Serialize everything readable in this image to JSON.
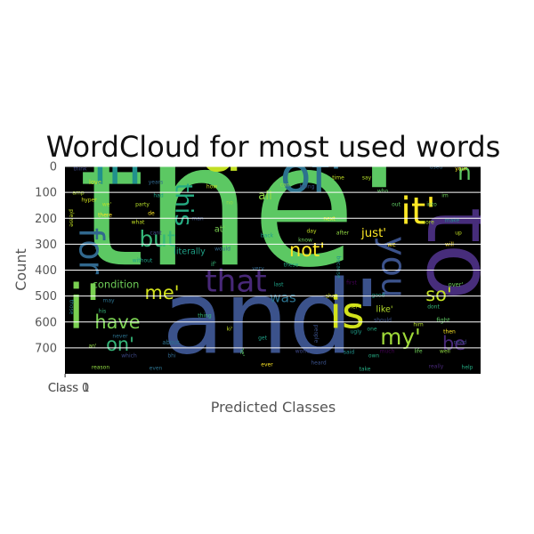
{
  "chart_data": {
    "type": "wordcloud",
    "title": "WordCloud for most used words",
    "xlabel": "Predicted Classes",
    "ylabel": "Count",
    "y_ticks": [
      0,
      100,
      200,
      300,
      400,
      500,
      600,
      700
    ],
    "ylim": [
      800,
      0
    ],
    "x_ticks": [
      {
        "label": "Class 0",
        "x": 0
      },
      {
        "label": "Class 1",
        "x": 1
      }
    ],
    "xlim": [
      0,
      1600
    ],
    "grid": true,
    "background": "#000000",
    "words": [
      {
        "text": "the'",
        "w": 1.0,
        "c": "#5cc863",
        "x": 270,
        "y": 245,
        "rot": 0
      },
      {
        "text": "and'",
        "w": 0.6,
        "c": "#3b528b",
        "x": 305,
        "y": 365,
        "rot": 0
      },
      {
        "text": "a'",
        "w": 0.42,
        "c": "#c2df23",
        "x": 260,
        "y": 170,
        "rot": 0
      },
      {
        "text": "to",
        "w": 0.55,
        "c": "#472d7b",
        "x": 510,
        "y": 285,
        "rot": 90
      },
      {
        "text": "i'",
        "w": 0.36,
        "c": "#7ad151",
        "x": 95,
        "y": 350,
        "rot": 0
      },
      {
        "text": "in'",
        "w": 0.32,
        "c": "#21918c",
        "x": 140,
        "y": 190,
        "rot": 0
      },
      {
        "text": "of'",
        "w": 0.3,
        "c": "#2c728e",
        "x": 350,
        "y": 200,
        "rot": 0
      },
      {
        "text": "is",
        "w": 0.26,
        "c": "#d2e21b",
        "x": 390,
        "y": 355,
        "rot": 0
      },
      {
        "text": "it'",
        "w": 0.22,
        "c": "#fde725",
        "x": 470,
        "y": 240,
        "rot": 0
      },
      {
        "text": "you",
        "w": 0.2,
        "c": "#3b528b",
        "x": 440,
        "y": 300,
        "rot": 90
      },
      {
        "text": "for",
        "w": 0.2,
        "c": "#31688e",
        "x": 100,
        "y": 282,
        "rot": 90
      },
      {
        "text": "that",
        "w": 0.18,
        "c": "#482878",
        "x": 265,
        "y": 318,
        "rot": 0
      },
      {
        "text": "this",
        "w": 0.14,
        "c": "#25ab82",
        "x": 205,
        "y": 230,
        "rot": 90
      },
      {
        "text": "with'",
        "w": 0.13,
        "c": "#b5de2b",
        "x": 460,
        "y": 177,
        "rot": 0
      },
      {
        "text": "but",
        "w": 0.13,
        "c": "#35b779",
        "x": 177,
        "y": 270,
        "rot": 0
      },
      {
        "text": "my'",
        "w": 0.13,
        "c": "#a0da39",
        "x": 450,
        "y": 380,
        "rot": 0
      },
      {
        "text": "have",
        "w": 0.11,
        "c": "#7ad151",
        "x": 132,
        "y": 363,
        "rot": 0
      },
      {
        "text": "not'",
        "w": 0.11,
        "c": "#fde725",
        "x": 345,
        "y": 282,
        "rot": 0
      },
      {
        "text": "so'",
        "w": 0.11,
        "c": "#c2df23",
        "x": 493,
        "y": 332,
        "rot": 0
      },
      {
        "text": "on'",
        "w": 0.11,
        "c": "#35b779",
        "x": 135,
        "y": 388,
        "rot": 0
      },
      {
        "text": "me'",
        "w": 0.11,
        "c": "#d2e21b",
        "x": 182,
        "y": 330,
        "rot": 0
      },
      {
        "text": "be",
        "w": 0.11,
        "c": "#482878",
        "x": 510,
        "y": 387,
        "rot": 0
      },
      {
        "text": "was",
        "w": 0.08,
        "c": "#2c728e",
        "x": 318,
        "y": 335,
        "rot": 0
      },
      {
        "text": "ñ",
        "w": 0.13,
        "c": "#5ec962",
        "x": 522,
        "y": 195,
        "rot": 0
      },
      {
        "text": "all",
        "w": 0.07,
        "c": "#90d743",
        "x": 298,
        "y": 220,
        "rot": 0
      },
      {
        "text": "just'",
        "w": 0.07,
        "c": "#fde725",
        "x": 420,
        "y": 262,
        "rot": 0
      },
      {
        "text": "condition",
        "w": 0.06,
        "c": "#6ece58",
        "x": 130,
        "y": 320,
        "rot": 0
      },
      {
        "text": "disappointment",
        "w": 0.05,
        "c": "#21918c",
        "x": 240,
        "y": 177,
        "rot": 0
      },
      {
        "text": "political",
        "w": 0.05,
        "c": "#26828e",
        "x": 372,
        "y": 177,
        "rot": 0
      },
      {
        "text": "literally",
        "w": 0.05,
        "c": "#1fa187",
        "x": 213,
        "y": 283,
        "rot": 0
      },
      {
        "text": "like'",
        "w": 0.05,
        "c": "#b5de2b",
        "x": 432,
        "y": 348,
        "rot": 0
      },
      {
        "text": "at'",
        "w": 0.05,
        "c": "#7ad151",
        "x": 247,
        "y": 258,
        "rot": 0
      },
      {
        "text": "incident",
        "w": 0.04,
        "c": "#3e4989",
        "x": 140,
        "y": 173,
        "rot": 0
      },
      {
        "text": "laugh",
        "w": 0.035,
        "c": "#21918c",
        "x": 436,
        "y": 170,
        "rot": 0
      },
      {
        "text": "love",
        "w": 0.035,
        "c": "#c2df23",
        "x": 107,
        "y": 205,
        "rot": 0
      },
      {
        "text": "about",
        "w": 0.035,
        "c": "#2c728e",
        "x": 192,
        "y": 385,
        "rot": 0
      },
      {
        "text": "over'",
        "w": 0.035,
        "c": "#6ece58",
        "x": 512,
        "y": 320,
        "rot": 0
      },
      {
        "text": "fight",
        "w": 0.035,
        "c": "#5ec962",
        "x": 498,
        "y": 360,
        "rot": 0
      },
      {
        "text": "first",
        "w": 0.03,
        "c": "#440154",
        "x": 395,
        "y": 318,
        "rot": 0
      },
      {
        "text": "we",
        "w": 0.035,
        "c": "#fde725",
        "x": 440,
        "y": 275,
        "rot": 0
      },
      {
        "text": "if'",
        "w": 0.035,
        "c": "#35b779",
        "x": 240,
        "y": 297,
        "rot": 0
      },
      {
        "text": "would",
        "w": 0.03,
        "c": "#31688e",
        "x": 250,
        "y": 280,
        "rot": 0
      },
      {
        "text": "hyper",
        "w": 0.03,
        "c": "#d2e21b",
        "x": 100,
        "y": 225,
        "rot": 0
      },
      {
        "text": "there",
        "w": 0.03,
        "c": "#fde725",
        "x": 118,
        "y": 242,
        "rot": 0
      },
      {
        "text": "will",
        "w": 0.03,
        "c": "#fde725",
        "x": 505,
        "y": 275,
        "rot": 0
      },
      {
        "text": "more",
        "w": 0.03,
        "c": "#b5de2b",
        "x": 480,
        "y": 250,
        "rot": 0
      },
      {
        "text": "make",
        "w": 0.03,
        "c": "#21918c",
        "x": 508,
        "y": 248,
        "rot": 0
      },
      {
        "text": "need",
        "w": 0.03,
        "c": "#3e4989",
        "x": 517,
        "y": 385,
        "rot": 0
      },
      {
        "text": "much",
        "w": 0.03,
        "c": "#440154",
        "x": 435,
        "y": 395,
        "rot": 0
      },
      {
        "text": "never",
        "w": 0.03,
        "c": "#2c728e",
        "x": 135,
        "y": 378,
        "rot": 0
      },
      {
        "text": "an'",
        "w": 0.03,
        "c": "#90d743",
        "x": 104,
        "y": 389,
        "rot": 0
      },
      {
        "text": "he'",
        "w": 0.035,
        "c": "#5ec962",
        "x": 272,
        "y": 395,
        "rot": 90
      },
      {
        "text": "ki'",
        "w": 0.03,
        "c": "#c2df23",
        "x": 258,
        "y": 370,
        "rot": 0
      },
      {
        "text": "bhi",
        "w": 0.025,
        "c": "#31688e",
        "x": 193,
        "y": 400,
        "rot": 0
      },
      {
        "text": "she'",
        "w": 0.03,
        "c": "#d2e21b",
        "x": 372,
        "y": 333,
        "rot": 0
      },
      {
        "text": "her",
        "w": 0.03,
        "c": "#d2e21b",
        "x": 397,
        "y": 345,
        "rot": 0
      },
      {
        "text": "one",
        "w": 0.03,
        "c": "#25ab82",
        "x": 418,
        "y": 370,
        "rot": 0
      },
      {
        "text": "should",
        "w": 0.028,
        "c": "#3b528b",
        "x": 430,
        "y": 360,
        "rot": 0
      },
      {
        "text": "good",
        "w": 0.028,
        "c": "#1f9e89",
        "x": 425,
        "y": 332,
        "rot": 0
      },
      {
        "text": "dont",
        "w": 0.028,
        "c": "#35b779",
        "x": 487,
        "y": 345,
        "rot": 0
      },
      {
        "text": "know",
        "w": 0.028,
        "c": "#6ece58",
        "x": 343,
        "y": 270,
        "rot": 0
      },
      {
        "text": "these",
        "w": 0.028,
        "c": "#25ab82",
        "x": 327,
        "y": 298,
        "rot": 0
      },
      {
        "text": "can",
        "w": 0.028,
        "c": "#90d743",
        "x": 320,
        "y": 208,
        "rot": 0
      },
      {
        "text": "how",
        "w": 0.028,
        "c": "#c2df23",
        "x": 238,
        "y": 210,
        "rot": 0
      },
      {
        "text": "your",
        "w": 0.028,
        "c": "#fde725",
        "x": 518,
        "y": 190,
        "rot": 0
      },
      {
        "text": "used",
        "w": 0.022,
        "c": "#31688e",
        "x": 490,
        "y": 188,
        "rot": 0
      },
      {
        "text": "time",
        "w": 0.022,
        "c": "#c2df23",
        "x": 380,
        "y": 200,
        "rot": 0
      },
      {
        "text": "say",
        "w": 0.022,
        "c": "#b5de2b",
        "x": 412,
        "y": 200,
        "rot": 0
      },
      {
        "text": "being",
        "w": 0.022,
        "c": "#3b528b",
        "x": 345,
        "y": 210,
        "rot": 0
      },
      {
        "text": "years",
        "w": 0.022,
        "c": "#31688e",
        "x": 175,
        "y": 205,
        "rot": 0
      },
      {
        "text": "had",
        "w": 0.022,
        "c": "#1fa187",
        "x": 178,
        "y": 220,
        "rot": 0
      },
      {
        "text": "amp",
        "w": 0.022,
        "c": "#b5de2b",
        "x": 88,
        "y": 217,
        "rot": 0
      },
      {
        "text": "think",
        "w": 0.022,
        "c": "#3e4989",
        "x": 90,
        "y": 190,
        "rot": 0
      },
      {
        "text": "him",
        "w": 0.022,
        "c": "#b5de2b",
        "x": 470,
        "y": 365,
        "rot": 0
      },
      {
        "text": "then",
        "w": 0.022,
        "c": "#fde725",
        "x": 505,
        "y": 373,
        "rot": 0
      },
      {
        "text": "help",
        "w": 0.02,
        "c": "#25ab82",
        "x": 525,
        "y": 413,
        "rot": 0
      },
      {
        "text": "reason",
        "w": 0.022,
        "c": "#90d743",
        "x": 113,
        "y": 413,
        "rot": 0
      },
      {
        "text": "may",
        "w": 0.022,
        "c": "#2c728e",
        "x": 122,
        "y": 338,
        "rot": 0
      },
      {
        "text": "his",
        "w": 0.028,
        "c": "#35b779",
        "x": 115,
        "y": 350,
        "rot": 0
      },
      {
        "text": "into",
        "w": 0.022,
        "c": "#6ece58",
        "x": 485,
        "y": 230,
        "rot": 0
      },
      {
        "text": "last",
        "w": 0.022,
        "c": "#1fa187",
        "x": 313,
        "y": 320,
        "rot": 0
      },
      {
        "text": "said",
        "w": 0.022,
        "c": "#21918c",
        "x": 392,
        "y": 396,
        "rot": 0
      },
      {
        "text": "heard",
        "w": 0.02,
        "c": "#3b528b",
        "x": 358,
        "y": 408,
        "rot": 0
      },
      {
        "text": "even",
        "w": 0.022,
        "c": "#2c728e",
        "x": 175,
        "y": 414,
        "rot": 0
      },
      {
        "text": "which",
        "w": 0.022,
        "c": "#3e4989",
        "x": 145,
        "y": 400,
        "rot": 0
      },
      {
        "text": "man",
        "w": 0.022,
        "c": "#3b528b",
        "x": 222,
        "y": 246,
        "rot": 0
      },
      {
        "text": "what",
        "w": 0.022,
        "c": "#c2df23",
        "x": 155,
        "y": 250,
        "rot": 0
      },
      {
        "text": "next",
        "w": 0.022,
        "c": "#fde725",
        "x": 370,
        "y": 246,
        "rot": 0
      },
      {
        "text": "after",
        "w": 0.022,
        "c": "#90d743",
        "x": 385,
        "y": 262,
        "rot": 0
      },
      {
        "text": "party",
        "w": 0.02,
        "c": "#b5de2b",
        "x": 160,
        "y": 230,
        "rot": 0
      },
      {
        "text": "who",
        "w": 0.02,
        "c": "#5ec962",
        "x": 430,
        "y": 215,
        "rot": 0
      },
      {
        "text": "really",
        "w": 0.02,
        "c": "#482878",
        "x": 490,
        "y": 412,
        "rot": 0
      },
      {
        "text": "take",
        "w": 0.02,
        "c": "#25ab82",
        "x": 410,
        "y": 415,
        "rot": 0
      },
      {
        "text": "ugly",
        "w": 0.02,
        "c": "#1f9e89",
        "x": 400,
        "y": 373,
        "rot": 0
      },
      {
        "text": "cant",
        "w": 0.02,
        "c": "#3e4989",
        "x": 175,
        "y": 262,
        "rot": 0
      },
      {
        "text": "very",
        "w": 0.02,
        "c": "#31688e",
        "x": 290,
        "y": 302,
        "rot": 0
      },
      {
        "text": "get",
        "w": 0.02,
        "c": "#1fa187",
        "x": 295,
        "y": 380,
        "rot": 0
      },
      {
        "text": "out",
        "w": 0.02,
        "c": "#5ec962",
        "x": 445,
        "y": 230,
        "rot": 0
      },
      {
        "text": "up",
        "w": 0.02,
        "c": "#c2df23",
        "x": 515,
        "y": 262,
        "rot": 0
      },
      {
        "text": "im",
        "w": 0.02,
        "c": "#6ece58",
        "x": 500,
        "y": 220,
        "rot": 0
      },
      {
        "text": "de",
        "w": 0.02,
        "c": "#fde725",
        "x": 170,
        "y": 240,
        "rot": 0
      },
      {
        "text": "no",
        "w": 0.02,
        "c": "#90d743",
        "x": 258,
        "y": 228,
        "rot": 0
      },
      {
        "text": "we'",
        "w": 0.02,
        "c": "#b5de2b",
        "x": 120,
        "y": 230,
        "rot": 0
      },
      {
        "text": "please",
        "w": 0.02,
        "c": "#c2df23",
        "x": 80,
        "y": 245,
        "rot": 90
      },
      {
        "text": "those",
        "w": 0.02,
        "c": "#26828e",
        "x": 80,
        "y": 345,
        "rot": 90
      },
      {
        "text": "thing",
        "w": 0.02,
        "c": "#35b779",
        "x": 230,
        "y": 355,
        "rot": 0
      },
      {
        "text": "people",
        "w": 0.02,
        "c": "#3b528b",
        "x": 355,
        "y": 375,
        "rot": 90
      },
      {
        "text": "because",
        "w": 0.02,
        "c": "#21918c",
        "x": 380,
        "y": 300,
        "rot": 90
      },
      {
        "text": "without",
        "w": 0.02,
        "c": "#1fa187",
        "x": 160,
        "y": 293,
        "rot": 0
      },
      {
        "text": "ever",
        "w": 0.02,
        "c": "#fde725",
        "x": 300,
        "y": 410,
        "rot": 0
      },
      {
        "text": "well",
        "w": 0.02,
        "c": "#90d743",
        "x": 500,
        "y": 395,
        "rot": 0
      },
      {
        "text": "own",
        "w": 0.02,
        "c": "#25ab82",
        "x": 420,
        "y": 400,
        "rot": 0
      },
      {
        "text": "life",
        "w": 0.02,
        "c": "#6ece58",
        "x": 470,
        "y": 395,
        "rot": 0
      },
      {
        "text": "world",
        "w": 0.02,
        "c": "#3e4989",
        "x": 340,
        "y": 395,
        "rot": 0
      },
      {
        "text": "day",
        "w": 0.02,
        "c": "#c2df23",
        "x": 350,
        "y": 260,
        "rot": 0
      },
      {
        "text": "back",
        "w": 0.02,
        "c": "#1f9e89",
        "x": 300,
        "y": 265,
        "rot": 0
      }
    ]
  }
}
